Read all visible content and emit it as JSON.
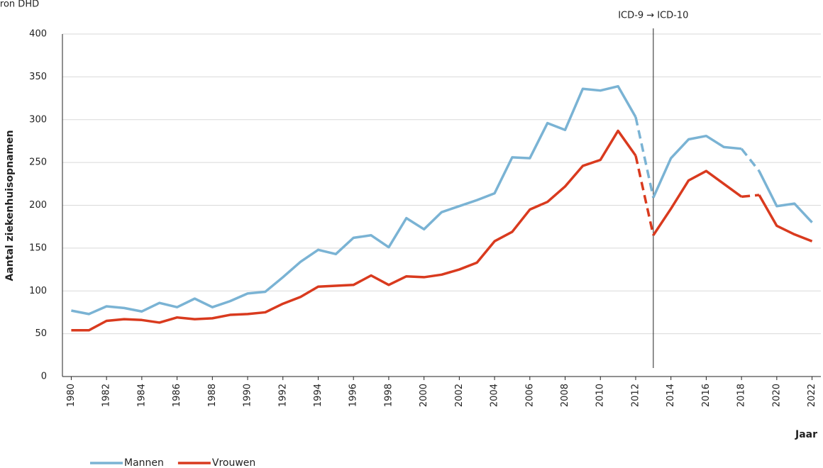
{
  "chart_data": {
    "type": "line",
    "source": "Bron DHD",
    "annotation": "ICD-9 → ICD-10",
    "annotation_x": 2013,
    "y_label": "Aantal ziekenhuisopnamen",
    "x_label": "Jaar",
    "x": [
      1980,
      1981,
      1982,
      1983,
      1984,
      1985,
      1986,
      1987,
      1988,
      1989,
      1990,
      1991,
      1992,
      1993,
      1994,
      1995,
      1996,
      1997,
      1998,
      1999,
      2000,
      2001,
      2002,
      2003,
      2004,
      2005,
      2006,
      2007,
      2008,
      2009,
      2010,
      2011,
      2012,
      2013,
      2014,
      2015,
      2016,
      2017,
      2018,
      2019,
      2020,
      2021,
      2022
    ],
    "series": [
      {
        "name": "Mannen",
        "color": "#7ab3d4",
        "dashed_from": [
          2012,
          2018
        ],
        "values": [
          77,
          73,
          82,
          80,
          76,
          86,
          81,
          91,
          81,
          88,
          97,
          99,
          116,
          134,
          148,
          143,
          162,
          165,
          151,
          185,
          172,
          192,
          199,
          206,
          214,
          256,
          255,
          296,
          288,
          336,
          334,
          339,
          303,
          209,
          255,
          277,
          281,
          268,
          266,
          240,
          199,
          202,
          180
        ]
      },
      {
        "name": "Vrouwen",
        "color": "#d93a1e",
        "dashed_from": [
          2012,
          2018
        ],
        "values": [
          54,
          54,
          65,
          67,
          66,
          63,
          69,
          67,
          68,
          72,
          73,
          75,
          85,
          93,
          105,
          106,
          107,
          118,
          107,
          117,
          116,
          119,
          125,
          133,
          158,
          169,
          195,
          204,
          222,
          246,
          253,
          287,
          258,
          165,
          196,
          229,
          240,
          225,
          210,
          212,
          176,
          166,
          158
        ]
      }
    ],
    "xlim": [
      1979.5,
      2022.5
    ],
    "xticks": [
      1980,
      1982,
      1984,
      1986,
      1988,
      1990,
      1992,
      1994,
      1996,
      1998,
      2000,
      2002,
      2004,
      2006,
      2008,
      2010,
      2012,
      2014,
      2016,
      2018,
      2020,
      2022
    ],
    "ylim": [
      0,
      400
    ],
    "yticks": [
      0,
      50,
      100,
      150,
      200,
      250,
      300,
      350,
      400
    ],
    "grid": true,
    "legend": "bottom-left"
  }
}
